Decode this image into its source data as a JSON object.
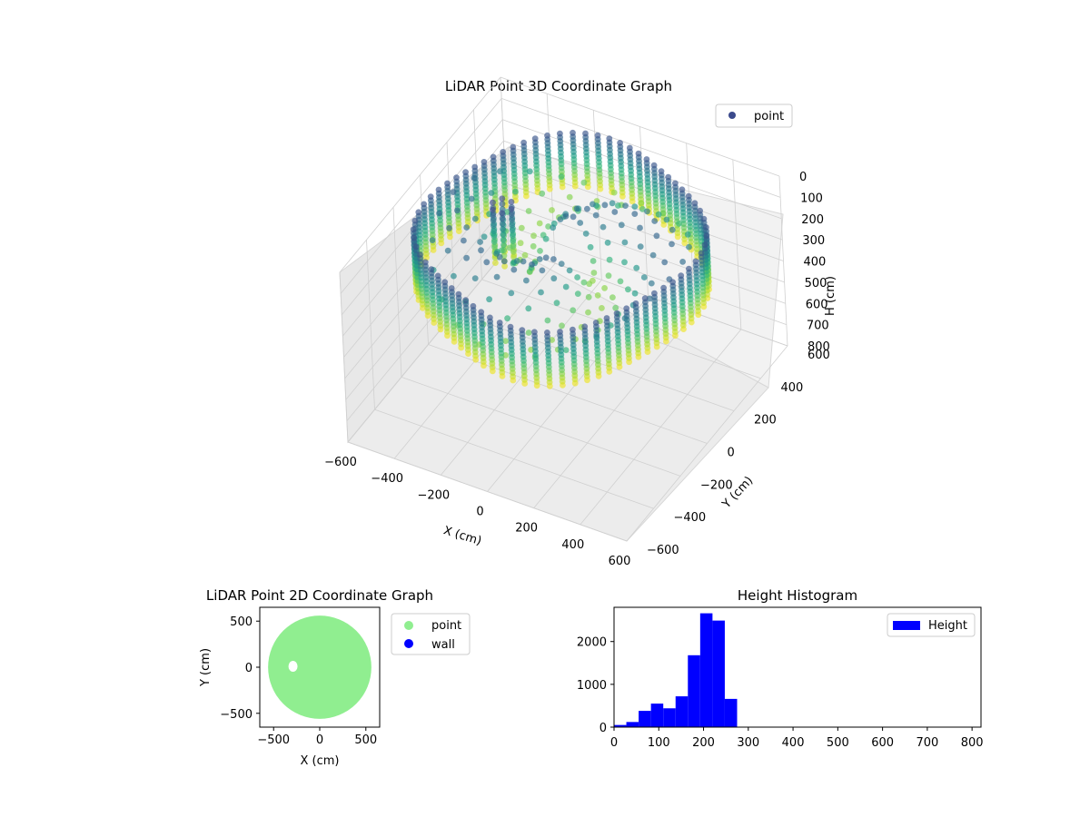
{
  "colors": {
    "point_marker": "#3b4a8c",
    "histogram_bar": "#0000ff",
    "scatter2d_point": "#90ee90",
    "scatter2d_wall": "#0000ff",
    "pane": "#f2f2f2",
    "grid": "#d0d0d0"
  },
  "chart_data": [
    {
      "type": "scatter",
      "dimension": "3d",
      "title": "LiDAR Point 3D Coordinate Graph",
      "xlabel": "X (cm)",
      "ylabel": "Y (cm)",
      "zlabel": "H (cm)",
      "xlim": [
        -600,
        600
      ],
      "ylim": [
        -600,
        600
      ],
      "zlim": [
        0,
        800
      ],
      "z_inverted": true,
      "x_ticks": [
        "−600",
        "−400",
        "−200",
        "0",
        "200",
        "400",
        "600"
      ],
      "y_ticks": [
        "−600",
        "−400",
        "−200",
        "0",
        "200",
        "400",
        "600"
      ],
      "z_ticks": [
        "0",
        "100",
        "200",
        "300",
        "400",
        "500",
        "600",
        "700",
        "800"
      ],
      "colormap": "viridis",
      "legend": {
        "entries": [
          "point"
        ],
        "placement": "top-right"
      },
      "grid": true,
      "series": [
        {
          "name": "point",
          "shape": "circular room scan",
          "approx_radius_cm": 560,
          "height_range_cm": [
            0,
            300
          ],
          "obstacle_near_cm": [
            -260,
            20
          ]
        }
      ]
    },
    {
      "type": "scatter",
      "title": "LiDAR Point 2D Coordinate Graph",
      "xlabel": "X (cm)",
      "ylabel": "Y (cm)",
      "xlim": [
        -650,
        650
      ],
      "ylim": [
        -650,
        650
      ],
      "x_ticks": [
        "−500",
        "0",
        "500"
      ],
      "y_ticks": [
        "−500",
        "0",
        "500"
      ],
      "legend": {
        "entries": [
          "point",
          "wall"
        ],
        "placement": "outside-right"
      },
      "series": [
        {
          "name": "point",
          "shape": "filled disk",
          "approx_radius_cm": 560,
          "hole_center_cm": [
            -290,
            10
          ]
        },
        {
          "name": "wall",
          "values": []
        }
      ]
    },
    {
      "type": "bar",
      "subtype": "histogram",
      "title": "Height Histogram",
      "xlim": [
        0,
        820
      ],
      "ylim": [
        0,
        2800
      ],
      "x_ticks": [
        "0",
        "100",
        "200",
        "300",
        "400",
        "500",
        "600",
        "700",
        "800"
      ],
      "y_ticks": [
        "0",
        "1000",
        "2000"
      ],
      "legend": {
        "entries": [
          "Height"
        ],
        "placement": "top-right"
      },
      "bin_width": 27.5,
      "series": [
        {
          "name": "Height",
          "bin_starts": [
            0,
            27.5,
            55,
            82.5,
            110,
            137.5,
            165,
            192.5,
            220,
            247.5,
            275
          ],
          "values": [
            50,
            120,
            380,
            550,
            440,
            720,
            1680,
            2660,
            2490,
            660,
            0
          ]
        }
      ]
    }
  ]
}
